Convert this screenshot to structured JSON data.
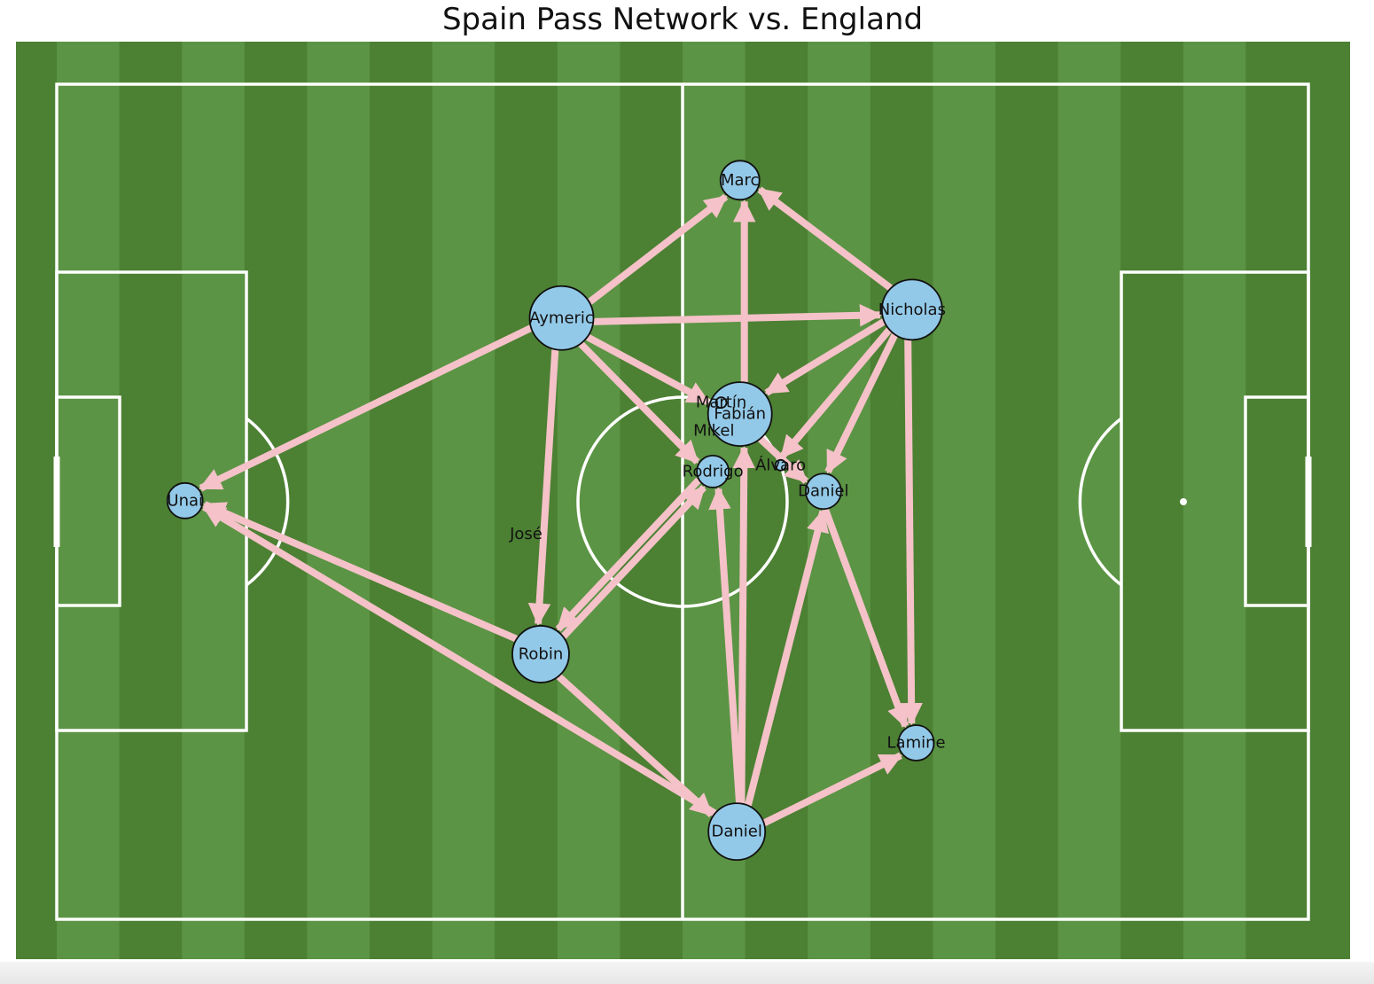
{
  "title": "Spain Pass Network vs. England",
  "colors": {
    "grass_light": "#5b9444",
    "grass_dark": "#4c8033",
    "lines": "#ffffff",
    "arrows": "#f4c2c8",
    "node_fill": "#93c9e8",
    "node_stroke": "#111111"
  },
  "chart_data": {
    "type": "network",
    "pitch": {
      "x_range": [
        0,
        120
      ],
      "y_range": [
        0,
        80
      ]
    },
    "nodes": [
      {
        "id": "unai",
        "label": "Unai",
        "x": 12.3,
        "y": 40.1,
        "size": 20
      },
      {
        "id": "aymeric",
        "label": "Aymeric",
        "x": 48.4,
        "y": 57.6,
        "size": 36
      },
      {
        "id": "robin",
        "label": "Robin",
        "x": 46.4,
        "y": 25.4,
        "size": 32
      },
      {
        "id": "marc",
        "label": "Marc",
        "x": 65.5,
        "y": 70.8,
        "size": 22
      },
      {
        "id": "nicholas",
        "label": "Nicholas",
        "x": 82.0,
        "y": 58.4,
        "size": 34
      },
      {
        "id": "fabian",
        "label": "Fabián",
        "x": 65.5,
        "y": 48.4,
        "size": 36
      },
      {
        "id": "martin",
        "label": "Martín",
        "x": 63.7,
        "y": 49.5,
        "size": 6
      },
      {
        "id": "mikel",
        "label": "Mikel",
        "x": 63.0,
        "y": 46.8,
        "size": 0
      },
      {
        "id": "rodrigo",
        "label": "Rodrigo",
        "x": 62.9,
        "y": 42.9,
        "size": 18
      },
      {
        "id": "alvaro",
        "label": "Álvaro",
        "x": 69.4,
        "y": 43.5,
        "size": 6
      },
      {
        "id": "daniel_mid",
        "label": "Daniel",
        "x": 73.5,
        "y": 41.0,
        "size": 20
      },
      {
        "id": "jose",
        "label": "José",
        "x": 45.0,
        "y": 36.9,
        "size": 0
      },
      {
        "id": "lamine",
        "label": "Lamine",
        "x": 82.4,
        "y": 16.9,
        "size": 20
      },
      {
        "id": "daniel_back",
        "label": "Daniel",
        "x": 65.2,
        "y": 8.4,
        "size": 32
      }
    ],
    "edges": [
      {
        "from": "aymeric",
        "to": "marc"
      },
      {
        "from": "nicholas",
        "to": "marc"
      },
      {
        "from": "fabian",
        "to": "marc"
      },
      {
        "from": "aymeric",
        "to": "unai"
      },
      {
        "from": "aymeric",
        "to": "rodrigo"
      },
      {
        "from": "aymeric",
        "to": "fabian"
      },
      {
        "from": "aymeric",
        "to": "robin"
      },
      {
        "from": "aymeric",
        "to": "nicholas"
      },
      {
        "from": "nicholas",
        "to": "fabian"
      },
      {
        "from": "nicholas",
        "to": "alvaro"
      },
      {
        "from": "nicholas",
        "to": "daniel_mid"
      },
      {
        "from": "nicholas",
        "to": "lamine"
      },
      {
        "from": "fabian",
        "to": "daniel_mid"
      },
      {
        "from": "robin",
        "to": "unai"
      },
      {
        "from": "robin",
        "to": "rodrigo"
      },
      {
        "from": "rodrigo",
        "to": "robin"
      },
      {
        "from": "robin",
        "to": "daniel_back"
      },
      {
        "from": "daniel_back",
        "to": "unai"
      },
      {
        "from": "daniel_back",
        "to": "rodrigo"
      },
      {
        "from": "daniel_back",
        "to": "fabian"
      },
      {
        "from": "daniel_back",
        "to": "daniel_mid"
      },
      {
        "from": "daniel_back",
        "to": "lamine"
      },
      {
        "from": "daniel_mid",
        "to": "lamine"
      }
    ]
  }
}
